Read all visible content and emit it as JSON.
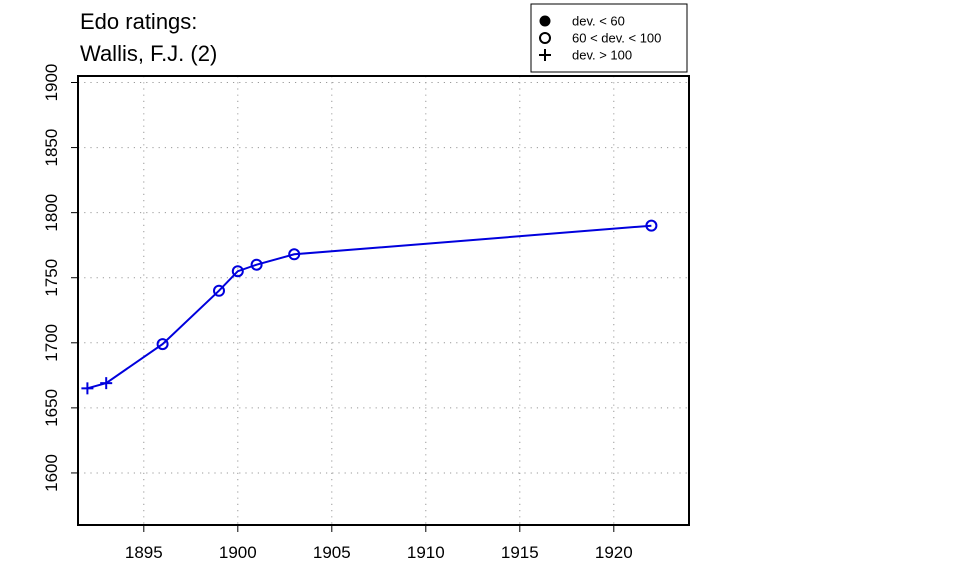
{
  "chart_data": {
    "type": "line",
    "title_lines": [
      "Edo ratings:",
      "Wallis, F.J. (2)"
    ],
    "xlabel": "",
    "ylabel": "",
    "xlim": [
      1891.5,
      1924
    ],
    "ylim": [
      1560,
      1905
    ],
    "x_ticks": [
      1895,
      1900,
      1905,
      1910,
      1915,
      1920,
      1925
    ],
    "x_tick_labels": [
      "1895",
      "1900",
      "1905",
      "1910",
      "1915",
      "1920"
    ],
    "y_ticks": [
      1600,
      1650,
      1700,
      1750,
      1800,
      1850,
      1900
    ],
    "y_tick_labels": [
      "1600",
      "1650",
      "1700",
      "1750",
      "1800",
      "1850",
      "1900"
    ],
    "grid": true,
    "series": [
      {
        "color": "#0000dd",
        "x": [
          1892,
          1893,
          1896,
          1899,
          1900,
          1901,
          1903,
          1922
        ],
        "y": [
          1665,
          1669,
          1699,
          1740,
          1755,
          1760,
          1768,
          1790
        ],
        "marker": [
          "plus",
          "plus",
          "open-circle",
          "open-circle",
          "open-circle",
          "open-circle",
          "open-circle",
          "open-circle"
        ]
      }
    ],
    "legend": {
      "placement": "top-right",
      "entries": [
        {
          "label": "dev. < 60",
          "marker": "filled-circle"
        },
        {
          "label": "60 < dev. < 100",
          "marker": "open-circle"
        },
        {
          "label": "dev. > 100",
          "marker": "plus"
        }
      ]
    }
  }
}
